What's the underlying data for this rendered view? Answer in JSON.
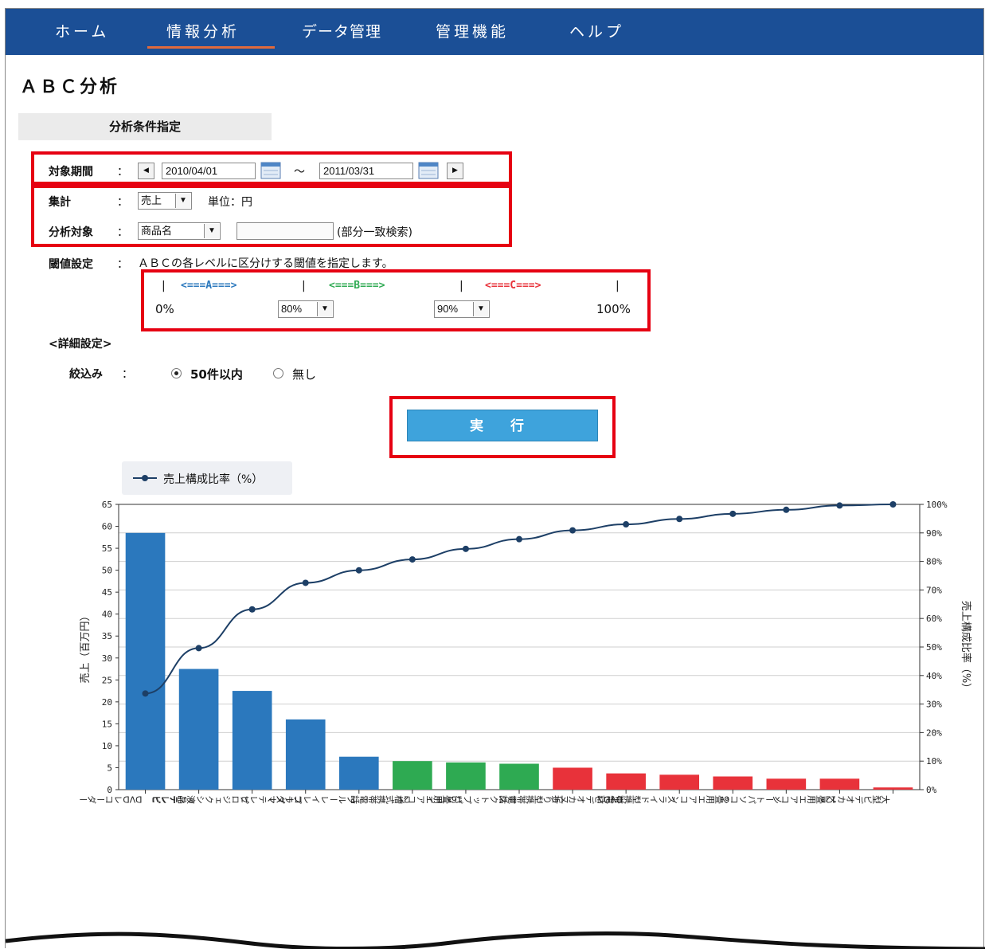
{
  "nav": {
    "items": [
      "ホーム",
      "情報分析",
      "データ管理",
      "管理機能",
      "ヘルプ"
    ]
  },
  "page_title": "ＡＢＣ分析",
  "section_header": "分析条件指定",
  "form": {
    "period_label": "対象期間",
    "colon": "：",
    "date_from": "2010/04/01",
    "tilde": "～",
    "date_to": "2011/03/31",
    "aggregate_label": "集計",
    "aggregate_value": "売上",
    "unit_text": "単位：円",
    "target_label": "分析対象",
    "target_value": "商品名",
    "target_search_value": "",
    "partial_match": "(部分一致検索)",
    "threshold_label": "閾値設定",
    "threshold_desc": "ＡＢＣの各レベルに区分けする閾値を指定します。",
    "scale_a": "<===A===>",
    "scale_b": "<===B===>",
    "scale_c": "<===C===>",
    "scale_sep": "|",
    "pct_0": "0%",
    "threshold_1": "80%",
    "threshold_2": "90%",
    "pct_100": "100%",
    "detail_heading": "<詳細設定>",
    "filter_label": "絞込み",
    "filter_option_1": "50件以内",
    "filter_option_2": "無し",
    "filter_selected": "50件以内",
    "run_button": "実 行"
  },
  "colors": {
    "nav_bg": "#1b4f96",
    "class_a": "#2b78bd",
    "class_b": "#2eaa52",
    "class_c": "#e8323a",
    "highlight": "#e60012",
    "run_button": "#3ea3dc"
  },
  "chart_data": {
    "type": "bar",
    "legend": "売上構成比率（%）",
    "ylabel": "売上（百万円）",
    "y2label": "売上構成比率（%）",
    "ylim": [
      0,
      65
    ],
    "yticks": [
      0,
      5,
      10,
      15,
      20,
      25,
      30,
      35,
      40,
      45,
      50,
      55,
      60,
      65
    ],
    "y2lim": [
      0,
      100
    ],
    "y2ticks": [
      "0%",
      "10%",
      "20%",
      "30%",
      "40%",
      "50%",
      "60%",
      "70%",
      "80%",
      "90%",
      "100%"
    ],
    "grid": true,
    "categories": [
      "DVDレコーダー",
      "液晶テレビ",
      "プロジェクションテレビ",
      "プラズマテレビ",
      "ブルーレイレコーダー",
      "2槽式携帯電話",
      "16畳用エアコン",
      "デスクトップパソコン",
      "二折り型携帯電話",
      "DVDビデオカメラ",
      "スライド型携帯電話",
      "6畳用エアコン",
      "ノートパソコン",
      "12畳用エアコン",
      "大型ビデオカメラ"
    ],
    "series": [
      {
        "type": "bar",
        "values": [
          58.5,
          27.5,
          22.5,
          16,
          7.5,
          6.5,
          6.2,
          5.9,
          5,
          3.7,
          3.4,
          3,
          2.5,
          2.5,
          0.5
        ],
        "classes": [
          "A",
          "A",
          "A",
          "A",
          "A",
          "B",
          "B",
          "B",
          "C",
          "C",
          "C",
          "C",
          "C",
          "C",
          "C"
        ]
      },
      {
        "name": "売上構成比率（%）",
        "type": "line",
        "axis": "right",
        "values": [
          33.7,
          49.6,
          63.2,
          72.5,
          76.9,
          80.7,
          84.4,
          87.8,
          90.9,
          93,
          94.9,
          96.7,
          98.1,
          99.6,
          100
        ]
      }
    ]
  }
}
